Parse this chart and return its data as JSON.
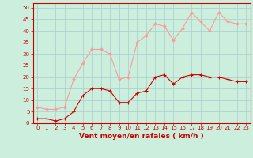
{
  "x": [
    0,
    1,
    2,
    3,
    4,
    5,
    6,
    7,
    8,
    9,
    10,
    11,
    12,
    13,
    14,
    15,
    16,
    17,
    18,
    19,
    20,
    21,
    22,
    23
  ],
  "y_mean": [
    2,
    2,
    1,
    2,
    5,
    12,
    15,
    15,
    14,
    9,
    9,
    13,
    14,
    20,
    21,
    17,
    20,
    21,
    21,
    20,
    20,
    19,
    18,
    18
  ],
  "y_gust": [
    7,
    6,
    6,
    7,
    19,
    26,
    32,
    32,
    30,
    19,
    20,
    35,
    38,
    43,
    42,
    36,
    41,
    48,
    44,
    40,
    48,
    44,
    43,
    43
  ],
  "mean_color": "#cc0000",
  "gust_color": "#ff9999",
  "bg_color": "#cceedd",
  "grid_color": "#aacccc",
  "xlabel": "Vent moyen/en rafales ( km/h )",
  "ylabel_values": [
    0,
    5,
    10,
    15,
    20,
    25,
    30,
    35,
    40,
    45,
    50
  ],
  "ylim": [
    0,
    52
  ],
  "xlim": [
    -0.5,
    23.5
  ],
  "tick_fontsize": 5,
  "xlabel_fontsize": 6.5
}
